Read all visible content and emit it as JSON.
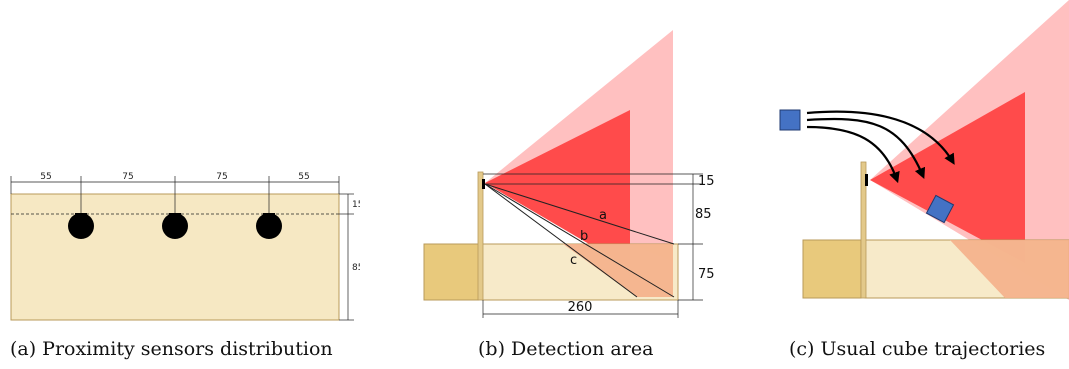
{
  "colors": {
    "box_fill": "#f6e8c3",
    "box_stroke": "#b89a5a",
    "post_fill": "#e3c98a",
    "block_fill": "#e8c97c",
    "sensor": "#000000",
    "cone_outer": "#ffc0c0",
    "cone_inner": "#ff4b4b",
    "overlap": "#f4b08a",
    "cube": "#4472c4",
    "line": "#222222"
  },
  "panel_a": {
    "top_dims": [
      "55",
      "75",
      "75",
      "55"
    ],
    "right_dims": [
      "15",
      "85"
    ],
    "sensor_count": 3,
    "caption_tag": "(a)",
    "caption_text": "Proximity sensors distribution"
  },
  "panel_b": {
    "dim_top": "15",
    "dim_mid": "85",
    "dim_low": "75",
    "dim_bottom": "260",
    "ray_labels": [
      "a",
      "b",
      "c"
    ],
    "caption_tag": "(b)",
    "caption_text": "Detection area"
  },
  "panel_c": {
    "icons": [
      "cube-icon",
      "curved-arrow-icon"
    ],
    "caption_tag": "(c)",
    "caption_text": "Usual cube trajectories"
  }
}
